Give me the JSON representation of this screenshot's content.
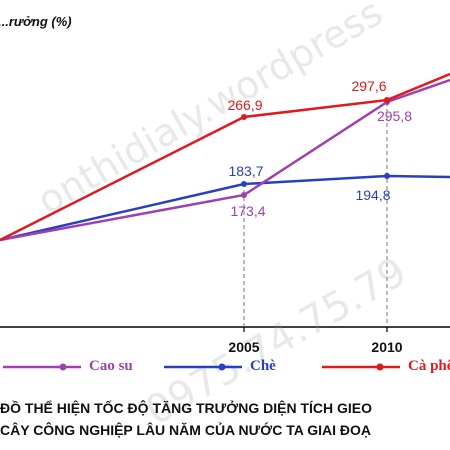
{
  "chart_data": {
    "type": "line",
    "ylabel": "...rưởng (%)",
    "categories": [
      "2005",
      "2010"
    ],
    "series": [
      {
        "name": "Cao su",
        "color": "#a040b0",
        "values": [
          173.4,
          295.8
        ]
      },
      {
        "name": "Chè",
        "color": "#2a3fc0",
        "values": [
          183.7,
          194.8
        ]
      },
      {
        "name": "Cà phê",
        "color": "#e0191d",
        "values": [
          266.9,
          297.6
        ]
      }
    ],
    "data_labels": [
      "173,4",
      "295,8",
      "183,7",
      "194,8",
      "266,9",
      "297,6"
    ],
    "grid": false
  },
  "legend": {
    "items": [
      "Cao su",
      "Chè",
      "Cà phê"
    ]
  },
  "caption": {
    "line1": "ĐỒ THỂ HIỆN TỐC ĐỘ TĂNG TRƯỞNG DIỆN TÍCH GIEO",
    "line2": "CÂY CÔNG NGHIỆP LÂU NĂM CỦA NƯỚC TA GIAI ĐOẠ"
  },
  "watermark": {
    "site": "onthidialy.wordpress",
    "phone": "0975.74.75.79"
  }
}
